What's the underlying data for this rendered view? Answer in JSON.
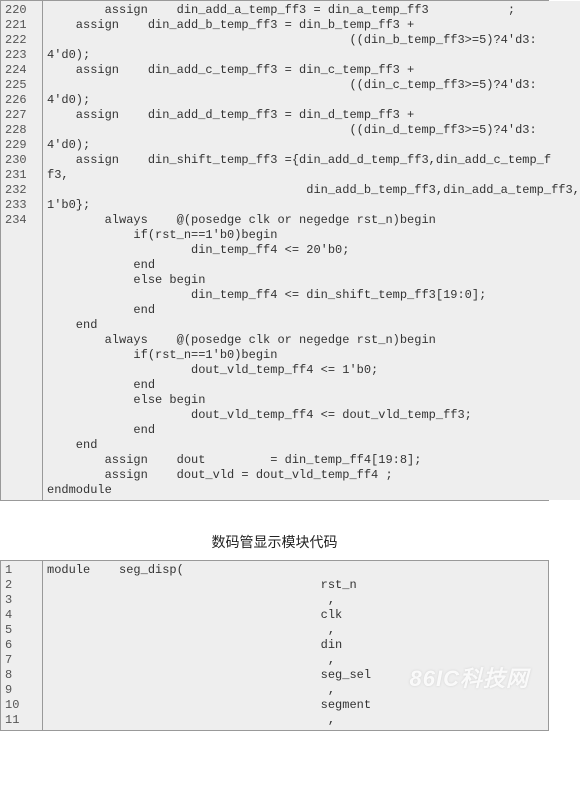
{
  "watermark_text": "86IC科技网",
  "block1": {
    "gutter_start": 220,
    "gutter_count": 15,
    "lines": [
      "        assign    din_add_a_temp_ff3 = din_a_temp_ff3           ;",
      "    assign    din_add_b_temp_ff3 = din_b_temp_ff3 +",
      "                                          ((din_b_temp_ff3>=5)?4'd3:",
      "4'd0);",
      "    assign    din_add_c_temp_ff3 = din_c_temp_ff3 +",
      "                                          ((din_c_temp_ff3>=5)?4'd3:",
      "4'd0);",
      "    assign    din_add_d_temp_ff3 = din_d_temp_ff3 +",
      "                                          ((din_d_temp_ff3>=5)?4'd3:",
      "4'd0);",
      "    assign    din_shift_temp_ff3 ={din_add_d_temp_ff3,din_add_c_temp_f",
      "f3,",
      "                                    din_add_b_temp_ff3,din_add_a_temp_ff3,",
      "1'b0};",
      "",
      "        always    @(posedge clk or negedge rst_n)begin",
      "            if(rst_n==1'b0)begin",
      "                    din_temp_ff4 <= 20'b0;",
      "            end",
      "            else begin",
      "                    din_temp_ff4 <= din_shift_temp_ff3[19:0];",
      "            end",
      "    end",
      "",
      "        always    @(posedge clk or negedge rst_n)begin",
      "            if(rst_n==1'b0)begin",
      "                    dout_vld_temp_ff4 <= 1'b0;",
      "            end",
      "            else begin",
      "                    dout_vld_temp_ff4 <= dout_vld_temp_ff3;",
      "            end",
      "    end",
      "        assign    dout         = din_temp_ff4[19:8];",
      "        assign    dout_vld = dout_vld_temp_ff4 ;",
      "endmodule"
    ]
  },
  "section_title": "数码管显示模块代码",
  "block2": {
    "gutter_start": 1,
    "gutter_count": 11,
    "lines": [
      "module    seg_disp(",
      "                                      rst_n",
      "                                       ,",
      "                                      clk",
      "                                       ,",
      "                                      din",
      "                                       ,",
      "                                      seg_sel",
      "                                       ,",
      "                                      segment",
      "                                       ,"
    ]
  },
  "colors": {
    "bg": "#ffffff",
    "code_bg": "#eeeeee",
    "border": "#999999",
    "text": "#333333",
    "gutter_text": "#555555"
  }
}
